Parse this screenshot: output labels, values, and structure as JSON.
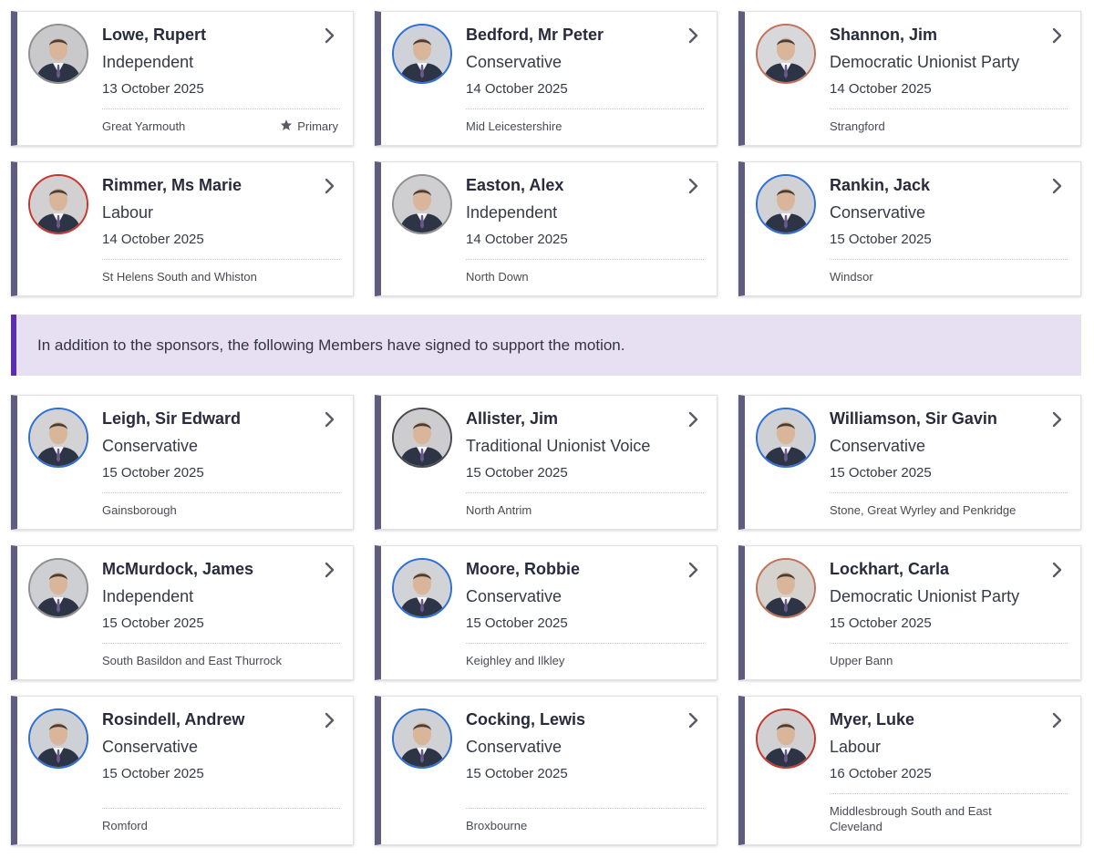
{
  "sponsors": [
    {
      "name": "Lowe, Rupert",
      "party": "Independent",
      "date": "13 October 2025",
      "constituency": "Great Yarmouth",
      "primary_label": "Primary",
      "party_color": "#909090",
      "avatar_bg": "#c9c9cc"
    },
    {
      "name": "Bedford, Mr Peter",
      "party": "Conservative",
      "date": "14 October 2025",
      "constituency": "Mid Leicestershire",
      "primary_label": "",
      "party_color": "#2f6fd6",
      "avatar_bg": "#cfd2d8"
    },
    {
      "name": "Shannon, Jim",
      "party": "Democratic Unionist Party",
      "date": "14 October 2025",
      "constituency": "Strangford",
      "primary_label": "",
      "party_color": "#c0735a",
      "avatar_bg": "#d8d8da"
    },
    {
      "name": "Rimmer, Ms Marie",
      "party": "Labour",
      "date": "14 October 2025",
      "constituency": "St Helens South and Whiston",
      "primary_label": "",
      "party_color": "#c8362e",
      "avatar_bg": "#d2d0d0"
    },
    {
      "name": "Easton, Alex",
      "party": "Independent",
      "date": "14 October 2025",
      "constituency": "North Down",
      "primary_label": "",
      "party_color": "#909090",
      "avatar_bg": "#cfcfd2"
    },
    {
      "name": "Rankin, Jack",
      "party": "Conservative",
      "date": "15 October 2025",
      "constituency": "Windsor",
      "primary_label": "",
      "party_color": "#2f6fd6",
      "avatar_bg": "#d0d2d6"
    }
  ],
  "supporters_banner": "In addition to the sponsors, the following Members have signed to support the motion.",
  "supporters": [
    {
      "name": "Leigh, Sir Edward",
      "party": "Conservative",
      "date": "15 October 2025",
      "constituency": "Gainsborough",
      "party_color": "#2f6fd6",
      "avatar_bg": "#d3d3d6"
    },
    {
      "name": "Allister, Jim",
      "party": "Traditional Unionist Voice",
      "date": "15 October 2025",
      "constituency": "North Antrim",
      "party_color": "#4a4a52",
      "avatar_bg": "#cdcdd0"
    },
    {
      "name": "Williamson, Sir Gavin",
      "party": "Conservative",
      "date": "15 October 2025",
      "constituency": "Stone, Great Wyrley and Penkridge",
      "party_color": "#2f6fd6",
      "avatar_bg": "#cfd1d4"
    },
    {
      "name": "McMurdock, James",
      "party": "Independent",
      "date": "15 October 2025",
      "constituency": "South Basildon and East Thurrock",
      "party_color": "#909090",
      "avatar_bg": "#cecfd2"
    },
    {
      "name": "Moore, Robbie",
      "party": "Conservative",
      "date": "15 October 2025",
      "constituency": "Keighley and Ilkley",
      "party_color": "#2f6fd6",
      "avatar_bg": "#d2d3d6"
    },
    {
      "name": "Lockhart, Carla",
      "party": "Democratic Unionist Party",
      "date": "15 October 2025",
      "constituency": "Upper Bann",
      "party_color": "#c0735a",
      "avatar_bg": "#d6d3cf"
    },
    {
      "name": "Rosindell, Andrew",
      "party": "Conservative",
      "date": "15 October 2025",
      "constituency": "Romford",
      "party_color": "#2f6fd6",
      "avatar_bg": "#cdd0d4"
    },
    {
      "name": "Cocking, Lewis",
      "party": "Conservative",
      "date": "15 October 2025",
      "constituency": "Broxbourne",
      "party_color": "#2f6fd6",
      "avatar_bg": "#cfd1d4"
    },
    {
      "name": "Myer, Luke",
      "party": "Labour",
      "date": "16 October 2025",
      "constituency": "Middlesbrough South and East Cleveland",
      "party_color": "#c8362e",
      "avatar_bg": "#d1d1d4"
    }
  ],
  "icons": {
    "card_action": "chevron-right-icon",
    "primary_marker": "star-icon",
    "member_photo": "member-photo-icon"
  },
  "colors": {
    "card_accent": "#5e5c7f",
    "banner_bg": "#e6e0f2",
    "banner_accent": "#5b2fb0",
    "chevron": "#5a5a66"
  }
}
